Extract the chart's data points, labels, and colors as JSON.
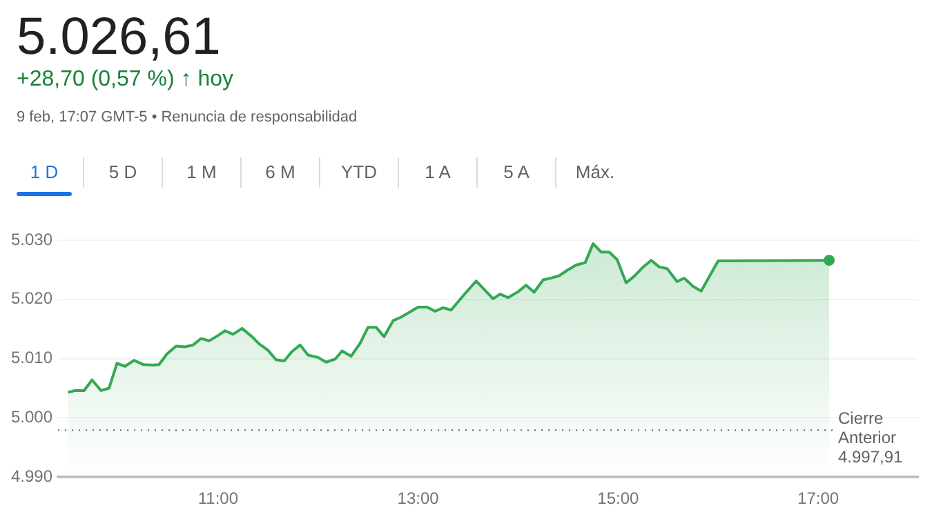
{
  "chart_data": {
    "type": "area",
    "title": "5.026,61",
    "subtitle": "+28,70 (0,57 %) ↑ hoy",
    "annotations": [
      "9 feb, 17:07 GMT-5 • Renuncia de responsabilidad",
      "1 D",
      "5 D",
      "1 M",
      "6 M",
      "YTD",
      "1 A",
      "5 A",
      "Máx."
    ],
    "x": [
      9.5,
      9.57,
      9.66,
      9.74,
      9.83,
      9.91,
      9.99,
      10.07,
      10.16,
      10.25,
      10.35,
      10.41,
      10.49,
      10.58,
      10.67,
      10.75,
      10.83,
      10.91,
      11.0,
      11.07,
      11.15,
      11.24,
      11.34,
      11.41,
      11.5,
      11.58,
      11.66,
      11.74,
      11.82,
      11.9,
      12.0,
      12.08,
      12.17,
      12.24,
      12.33,
      12.42,
      12.5,
      12.58,
      12.66,
      12.75,
      12.83,
      12.93,
      13.0,
      13.09,
      13.17,
      13.25,
      13.33,
      13.47,
      13.58,
      13.75,
      13.82,
      13.9,
      14.0,
      14.08,
      14.16,
      14.25,
      14.33,
      14.41,
      14.49,
      14.58,
      14.67,
      14.75,
      14.83,
      14.91,
      14.99,
      15.08,
      15.16,
      15.24,
      15.33,
      15.41,
      15.49,
      15.59,
      15.66,
      15.75,
      15.83,
      16.0,
      17.11
    ],
    "series": [
      {
        "color": "#34a853",
        "values": [
          5004.3,
          5004.6,
          5004.6,
          5006.4,
          5004.6,
          5005.0,
          5009.2,
          5008.7,
          5009.7,
          5009.0,
          5008.9,
          5009.0,
          5010.8,
          5012.1,
          5012.0,
          5012.3,
          5013.4,
          5013.0,
          5013.9,
          5014.7,
          5014.1,
          5015.1,
          5013.7,
          5012.5,
          5011.4,
          5009.8,
          5009.6,
          5011.2,
          5012.3,
          5010.6,
          5010.2,
          5009.4,
          5009.9,
          5011.3,
          5010.4,
          5012.6,
          5015.3,
          5015.3,
          5013.7,
          5016.4,
          5017.0,
          5018.0,
          5018.7,
          5018.7,
          5018.0,
          5018.6,
          5018.2,
          5021.0,
          5023.1,
          5020.1,
          5020.9,
          5020.3,
          5021.3,
          5022.4,
          5021.2,
          5023.3,
          5023.6,
          5024.0,
          5024.9,
          5025.8,
          5026.2,
          5029.4,
          5028.0,
          5028.0,
          5026.7,
          5022.8,
          5023.9,
          5025.3,
          5026.6,
          5025.5,
          5025.2,
          5023.0,
          5023.6,
          5022.2,
          5021.4,
          5026.5,
          5026.6
        ]
      }
    ],
    "xlim": [
      9.4,
      18
    ],
    "xticks": [
      {
        "value": 11,
        "label": "11:00"
      },
      {
        "value": 13,
        "label": "13:00"
      },
      {
        "value": 15,
        "label": "15:00"
      },
      {
        "value": 17,
        "label": "17:00"
      }
    ],
    "ylim": [
      4990,
      5030
    ],
    "yticks": [
      {
        "value": 4990,
        "label": "4.990"
      },
      {
        "value": 5000,
        "label": "5.000"
      },
      {
        "value": 5010,
        "label": "5.010"
      },
      {
        "value": 5020,
        "label": "5.020"
      },
      {
        "value": 5030,
        "label": "5.030"
      }
    ],
    "grid": "y",
    "ref_lines": [
      {
        "axis": "y",
        "value": 4997.91,
        "label": "Cierre Anterior 4.997,91",
        "line_style": "dotted"
      }
    ]
  }
}
